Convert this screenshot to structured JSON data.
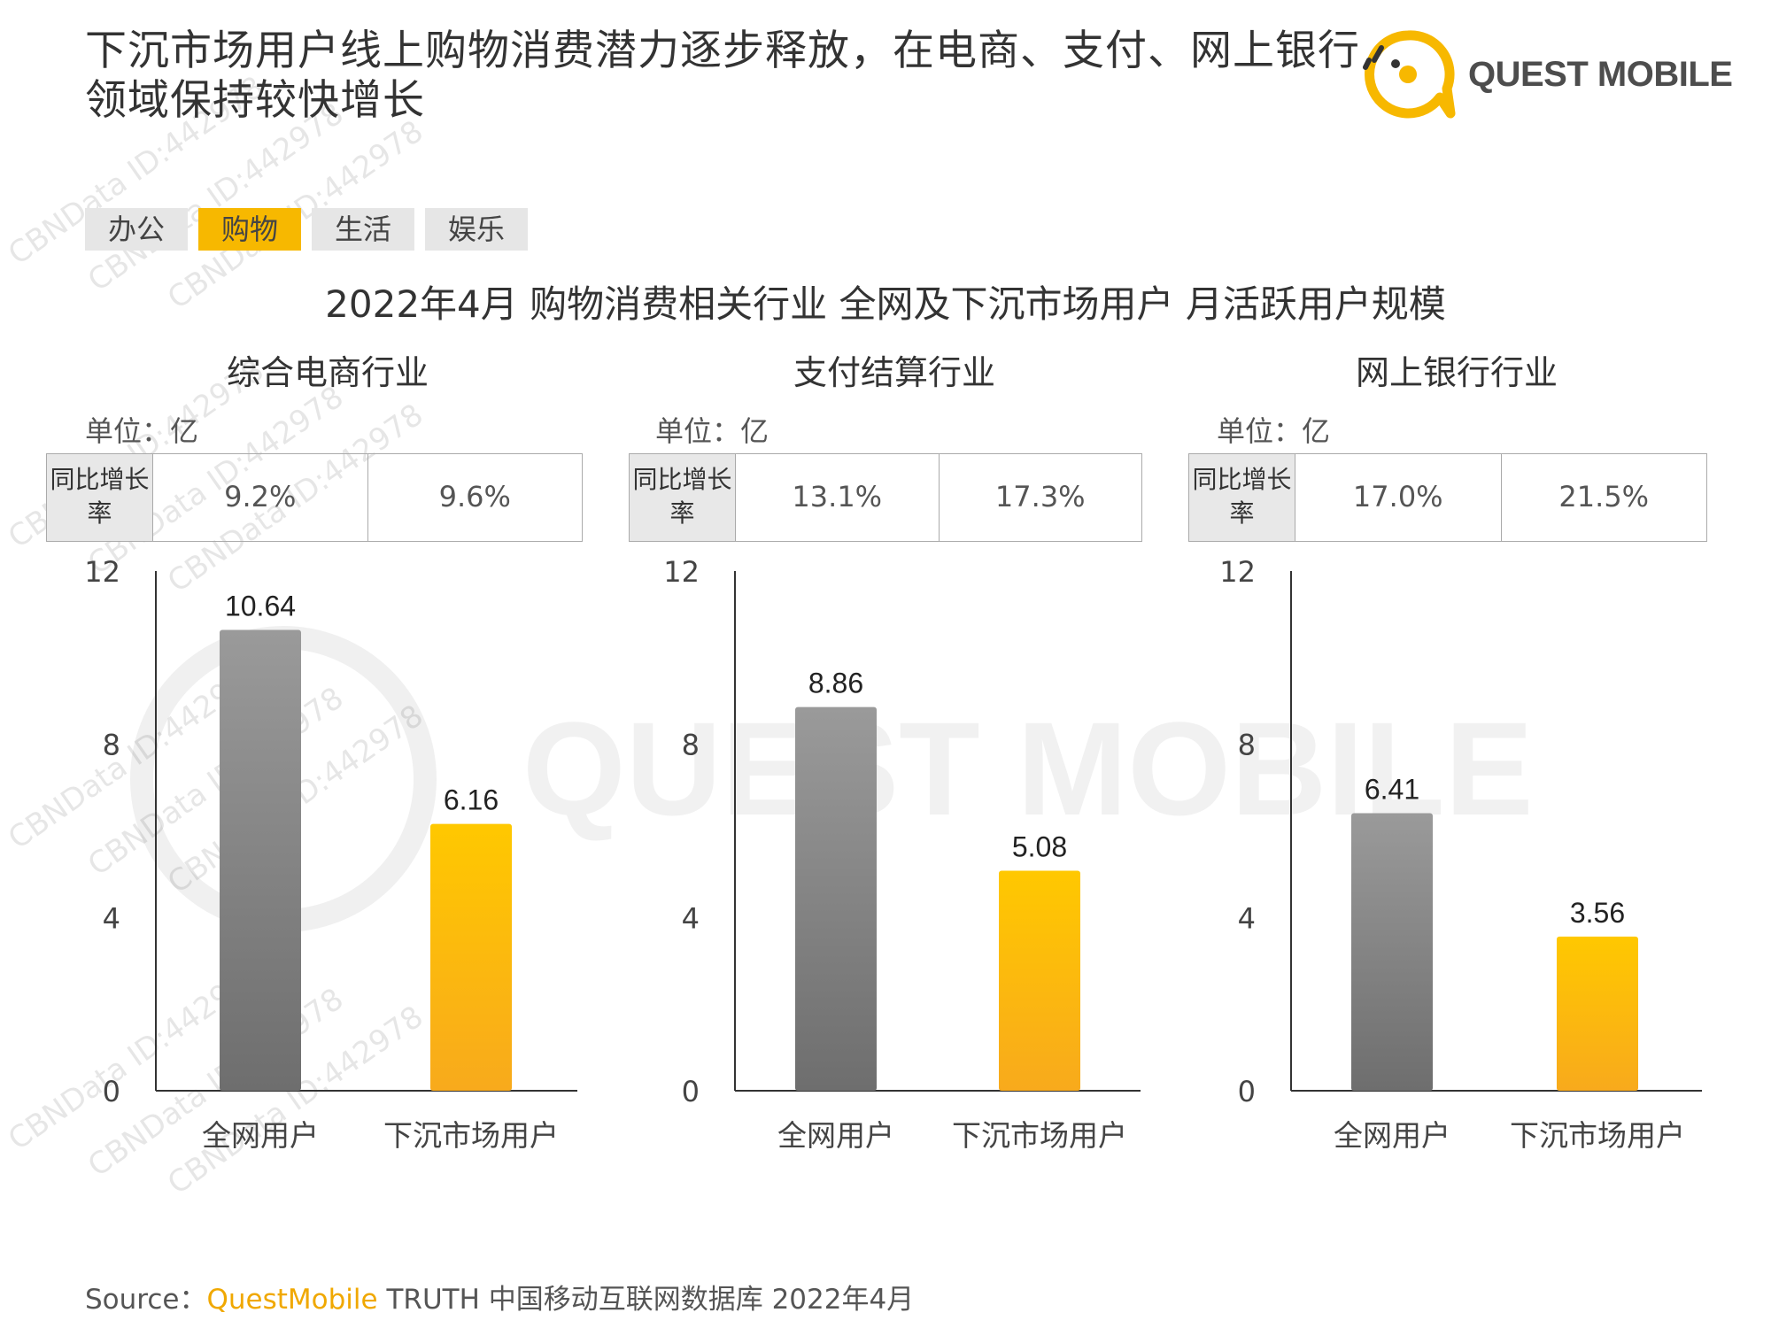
{
  "headline": "下沉市场用户线上购物消费潜力逐步释放，在电商、支付、网上银行领域保持较快增长",
  "brand": {
    "name": "QUEST MOBILE",
    "logo": "quest-mobile-logo"
  },
  "tabs": [
    {
      "label": "办公",
      "active": false
    },
    {
      "label": "购物",
      "active": true
    },
    {
      "label": "生活",
      "active": false
    },
    {
      "label": "娱乐",
      "active": false
    }
  ],
  "unit_text": "单位：亿",
  "yoy_label": "同比增长率",
  "watermark": {
    "text": "CBNData ID:442978",
    "logo_text": "QUEST MOBILE"
  },
  "colors": {
    "accent": "#f7b800",
    "gray_bar": "#8a8a8a",
    "yellow_bar": "#fbbd14"
  },
  "source": {
    "prefix": "Source：",
    "brand": "QuestMobile",
    "rest": " TRUTH 中国移动互联网数据库 2022年4月"
  },
  "chart_data": {
    "title": "2022年4月 购物消费相关行业 全网及下沉市场用户 月活跃用户规模",
    "charts": [
      {
        "type": "bar",
        "title": "综合电商行业",
        "categories": [
          "全网用户",
          "下沉市场用户"
        ],
        "values": [
          10.64,
          6.16
        ],
        "yoy": [
          "9.2%",
          "9.6%"
        ],
        "ylim": [
          0,
          12
        ],
        "yticks": [
          0,
          4,
          8,
          12
        ]
      },
      {
        "type": "bar",
        "title": "支付结算行业",
        "categories": [
          "全网用户",
          "下沉市场用户"
        ],
        "values": [
          8.86,
          5.08
        ],
        "yoy": [
          "13.1%",
          "17.3%"
        ],
        "ylim": [
          0,
          12
        ],
        "yticks": [
          0,
          4,
          8,
          12
        ]
      },
      {
        "type": "bar",
        "title": "网上银行行业",
        "categories": [
          "全网用户",
          "下沉市场用户"
        ],
        "values": [
          6.41,
          3.56
        ],
        "yoy": [
          "17.0%",
          "21.5%"
        ],
        "ylim": [
          0,
          12
        ],
        "yticks": [
          0,
          4,
          8,
          12
        ]
      }
    ]
  }
}
